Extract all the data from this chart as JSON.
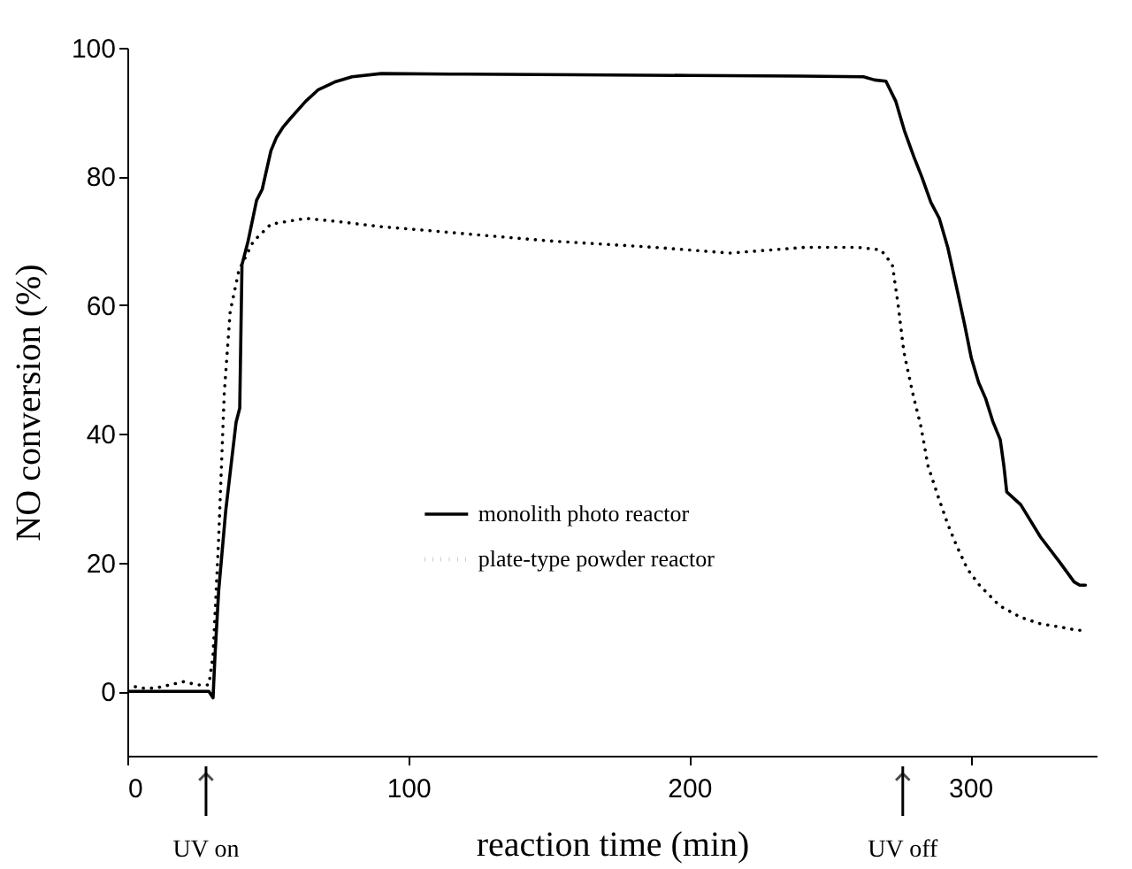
{
  "chart_data": {
    "type": "line",
    "xlabel": "reaction time (min)",
    "ylabel": "NO conversion (%)",
    "xlim": [
      0,
      345
    ],
    "xticks": [
      0,
      100,
      200,
      300
    ],
    "ylim": [
      -10,
      100
    ],
    "yticks": [
      0,
      20,
      40,
      60,
      80,
      100
    ],
    "grid": false,
    "legend": "bottom",
    "marker": "none",
    "annotations": [
      {
        "text": "UV on",
        "x": 28
      },
      {
        "text": "UV off",
        "x": 276
      }
    ],
    "series": [
      {
        "name": "monolith photo reactor",
        "color": "#000000",
        "line_style": "solid",
        "x": [
          0,
          10,
          20,
          29,
          30.5,
          31.2,
          32.5,
          35,
          38.7,
          40,
          40.8,
          43,
          46,
          48,
          51.1,
          53,
          55.3,
          58,
          63.5,
          68,
          73.9,
          80,
          90.4,
          120,
          160,
          200,
          240,
          262,
          266,
          270,
          273.5,
          276.6,
          280,
          282.8,
          286,
          289,
          292,
          295.2,
          298,
          300.4,
          303,
          305.5,
          308,
          310.7,
          312,
          313,
          318,
          325,
          332,
          337,
          339,
          341
        ],
        "values": [
          0,
          0,
          0,
          0,
          -1,
          5.6,
          15.6,
          28,
          41.8,
          44,
          66.3,
          70,
          76.3,
          78,
          84,
          86,
          87.6,
          89,
          91.7,
          93.5,
          94.7,
          95.5,
          96,
          95.9,
          95.8,
          95.7,
          95.6,
          95.5,
          95,
          94.8,
          91.7,
          87.1,
          83,
          79.9,
          76,
          73.5,
          69,
          62.7,
          57,
          51.8,
          48,
          45.5,
          42,
          39.1,
          35,
          31,
          29,
          24,
          20,
          17,
          16.5,
          16.5
        ]
      },
      {
        "name": "plate-type powder reactor",
        "color": "#000000",
        "line_style": "dotted",
        "x": [
          0,
          5,
          10,
          15,
          20,
          25,
          29,
          30.5,
          32.5,
          34.5,
          36.6,
          39.7,
          44.8,
          51.1,
          63.5,
          75,
          90.4,
          110,
          123,
          150,
          187.6,
          214.4,
          241.3,
          260,
          268.2,
          272.3,
          274.4,
          276.4,
          279.5,
          282.6,
          285,
          288.8,
          292,
          295,
          299,
          303.3,
          310.5,
          318,
          325,
          332,
          338,
          341
        ],
        "values": [
          1,
          0.5,
          0.5,
          1,
          1.5,
          1,
          1,
          5.6,
          23.7,
          46.4,
          59,
          65.4,
          69.9,
          72.6,
          73.5,
          73,
          72.2,
          71.5,
          71,
          70,
          69,
          68.1,
          69,
          69,
          68.6,
          66.3,
          59.9,
          52.7,
          46.4,
          40.9,
          35,
          30,
          26,
          22.8,
          19,
          16.5,
          13.3,
          11.5,
          10.5,
          10,
          9.5,
          9.5
        ]
      }
    ]
  }
}
